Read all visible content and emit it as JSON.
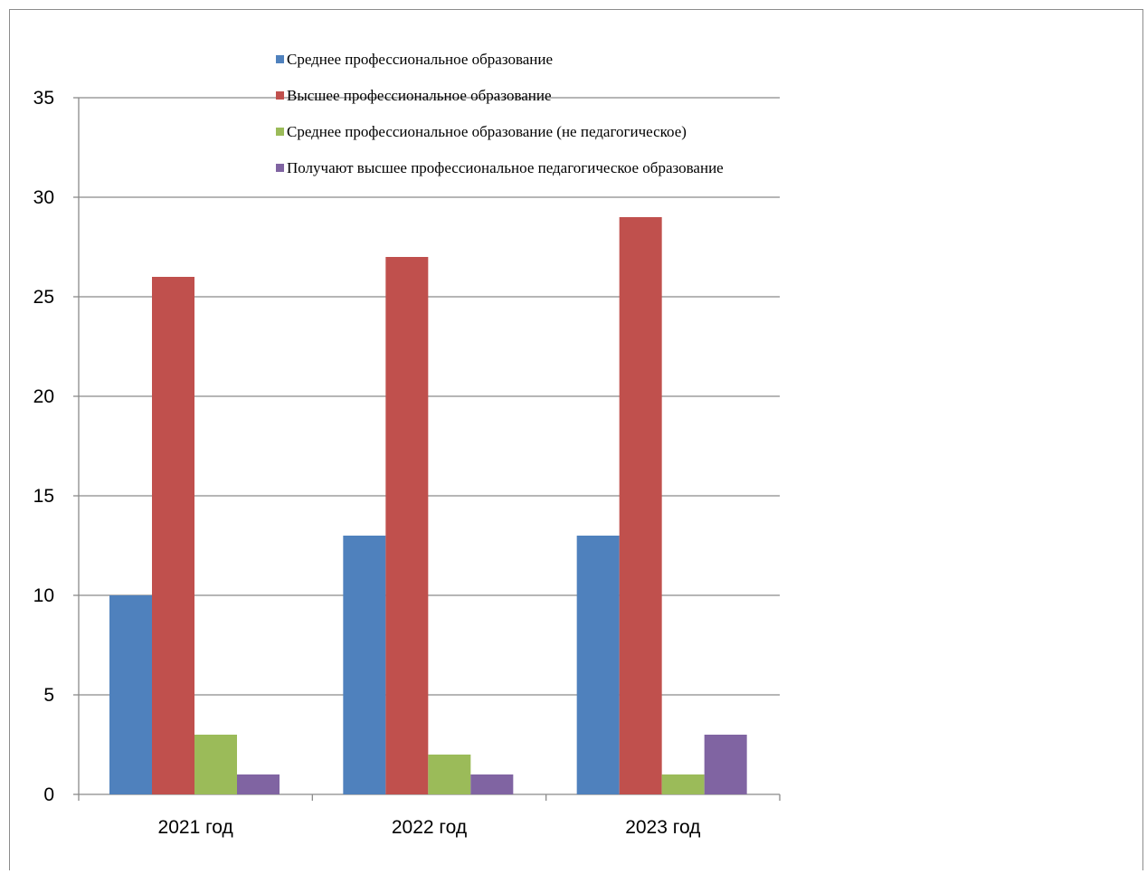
{
  "chart_data": {
    "type": "bar",
    "categories": [
      "2021 год",
      "2022 год",
      "2023 год"
    ],
    "series": [
      {
        "name": "Среднее профессиональное образование",
        "values": [
          10,
          13,
          13
        ],
        "color": "#4F81BD"
      },
      {
        "name": "Высшее профессиональное образование",
        "values": [
          26,
          27,
          29
        ],
        "color": "#C0504D"
      },
      {
        "name": "Среднее профессиональное образование (не педагогическое)",
        "values": [
          3,
          2,
          1
        ],
        "color": "#9BBB59"
      },
      {
        "name": "Получают высшее профессиональное педагогическое образование",
        "values": [
          1,
          1,
          3
        ],
        "color": "#8064A2"
      }
    ],
    "ylim": [
      0,
      35
    ],
    "yticks": [
      0,
      5,
      10,
      15,
      20,
      25,
      30,
      35
    ],
    "grid": true,
    "legend_position": "top",
    "title": "",
    "xlabel": "",
    "ylabel": ""
  }
}
